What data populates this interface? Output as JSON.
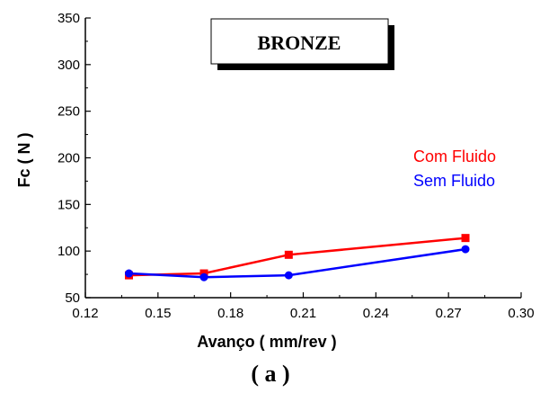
{
  "chart_data": {
    "type": "line",
    "title": "BRONZE",
    "xlabel": "Avanço ( mm/rev )",
    "ylabel": "Fc ( N )",
    "caption": "( a )",
    "xlim": [
      0.12,
      0.3
    ],
    "ylim": [
      50,
      350
    ],
    "x_ticks": [
      "0.12",
      "0.15",
      "0.18",
      "0.21",
      "0.24",
      "0.27",
      "0.30"
    ],
    "y_ticks": [
      "50",
      "100",
      "150",
      "200",
      "250",
      "300",
      "350"
    ],
    "grid": false,
    "legend_position": "right",
    "series": [
      {
        "name": "Com Fluido",
        "color": "#ff0000",
        "marker": "square",
        "x": [
          0.138,
          0.169,
          0.204,
          0.277
        ],
        "y": [
          74,
          76,
          96,
          114
        ]
      },
      {
        "name": "Sem Fluido",
        "color": "#0000ff",
        "marker": "circle",
        "x": [
          0.138,
          0.169,
          0.204,
          0.277
        ],
        "y": [
          76,
          72,
          74,
          102
        ]
      }
    ]
  }
}
